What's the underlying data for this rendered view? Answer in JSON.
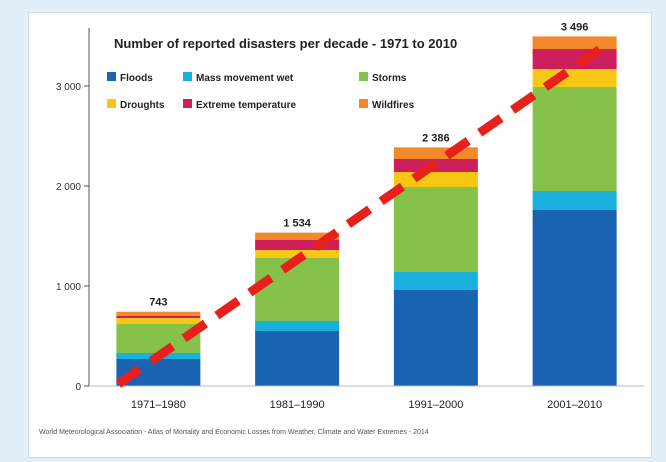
{
  "chart_data": {
    "type": "bar",
    "stacked": true,
    "title": "Number of reported disasters per decade - 1971 to 2010",
    "xlabel": "",
    "ylabel": "",
    "ylim": [
      0,
      3500
    ],
    "yticks": [
      0,
      1000,
      2000,
      3000
    ],
    "ytick_labels": [
      "0",
      "1 000",
      "2 000",
      "3 000"
    ],
    "categories": [
      "1971–1980",
      "1981–1990",
      "1991–2000",
      "2001–2010"
    ],
    "totals": [
      743,
      1534,
      2386,
      3496
    ],
    "total_labels": [
      "743",
      "1 534",
      "2 386",
      "3 496"
    ],
    "series": [
      {
        "name": "Floods",
        "color": "#1a63b0",
        "values": [
          270,
          550,
          960,
          1760
        ]
      },
      {
        "name": "Mass movement wet",
        "color": "#1ab0dc",
        "values": [
          60,
          100,
          180,
          190
        ]
      },
      {
        "name": "Storms",
        "color": "#86c24a",
        "values": [
          290,
          630,
          850,
          1040
        ]
      },
      {
        "name": "Droughts",
        "color": "#f6c815",
        "values": [
          60,
          80,
          150,
          180
        ]
      },
      {
        "name": "Extreme temperature",
        "color": "#cc1f5c",
        "values": [
          23,
          100,
          130,
          200
        ]
      },
      {
        "name": "Wildfires",
        "color": "#f3892a",
        "values": [
          40,
          74,
          116,
          126
        ]
      }
    ],
    "trend_line": {
      "color": "#e8201c",
      "style": "dashed",
      "from": [
        0,
        0
      ],
      "to": [
        3,
        3400
      ]
    },
    "legend": "top-left",
    "grid": false,
    "source": "World Meteorological Association - Atlas of Mortality and Economic Losses from Weather, Climate and Water Extremes - 2014"
  }
}
